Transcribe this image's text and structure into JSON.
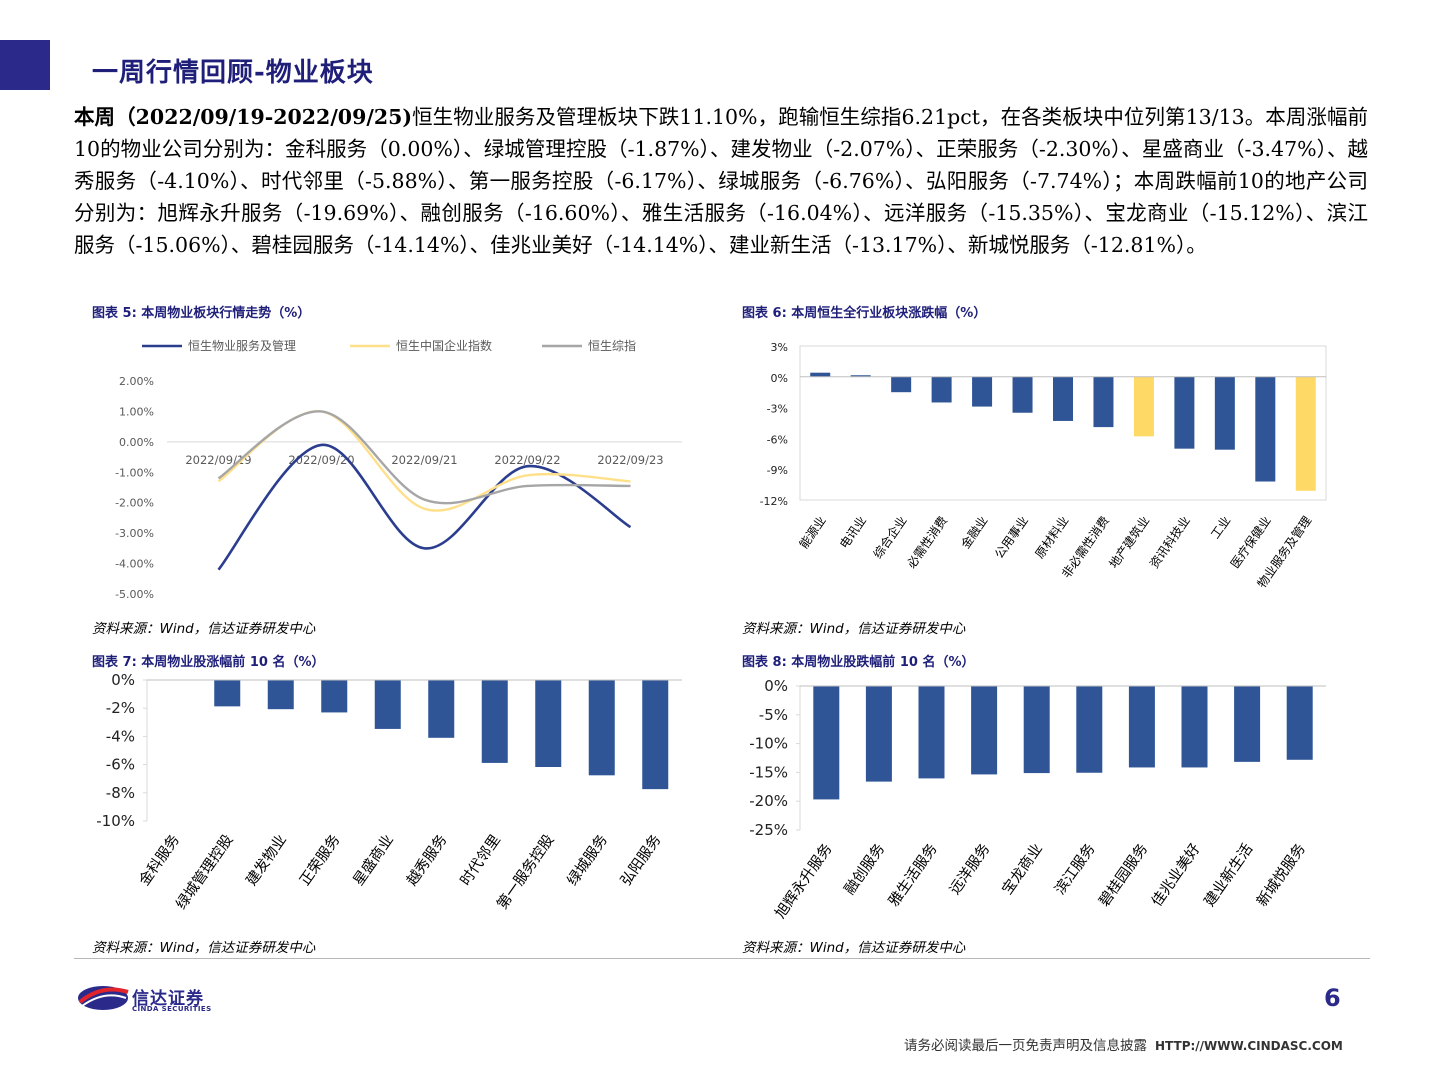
{
  "page": {
    "title": "一周行情回顾-物业板块",
    "summary_bold": "本周（2022/09/19-2022/09/25)",
    "summary_text": "恒生物业服务及管理板块下跌11.10%，跑输恒生综指6.21pct，在各类板块中位列第13/13。本周涨幅前10的物业公司分别为：金科服务（0.00%）、绿城管理控股（-1.87%）、建发物业（-2.07%）、正荣服务（-2.30%）、星盛商业（-3.47%）、越秀服务（-4.10%）、时代邻里（-5.88%）、第一服务控股（-6.17%）、绿城服务（-6.76%）、弘阳服务（-7.74%）；本周跌幅前10的地产公司分别为：旭辉永升服务（-19.69%）、融创服务（-16.60%）、雅生活服务（-16.04%）、远洋服务（-15.35%）、宝龙商业（-15.12%）、滨江服务（-15.06%）、碧桂园服务（-14.14%）、佳兆业美好（-14.14%）、建业新生活（-13.17%）、新城悦服务（-12.81%）。"
  },
  "figures": {
    "fig5_caption": "图表 5:  本周物业板块行情走势（%）",
    "fig6_caption": "图表 6:  本周恒生全行业板块涨跌幅（%）",
    "fig7_caption": "图表 7:  本周物业股涨幅前 10 名（%）",
    "fig8_caption": "图表 8:  本周物业股跌幅前 10 名（%）",
    "source": "资料来源：Wind，信达证券研发中心"
  },
  "footer": {
    "logo_cn": "信达证券",
    "logo_en": "CINDA SECURITIES",
    "page_number": "6",
    "disclaimer": "请务必阅读最后一页免责声明及信息披露",
    "url": "HTTP://WWW.CINDASC.COM"
  },
  "colors": {
    "navy": "#2b2a8a",
    "bar_blue": "#2f5597",
    "highlight_yellow": "#ffd966",
    "line_yellow": "#ffe08a",
    "line_gray": "#a6a6a6"
  },
  "chart_data": [
    {
      "id": "fig5",
      "type": "line",
      "x": [
        "2022/09/19",
        "2022/09/20",
        "2022/09/21",
        "2022/09/22",
        "2022/09/23"
      ],
      "ylim": [
        -5,
        2
      ],
      "yticks": [
        "2.00%",
        "1.00%",
        "0.00%",
        "-1.00%",
        "-2.00%",
        "-3.00%",
        "-4.00%",
        "-5.00%"
      ],
      "series": [
        {
          "name": "恒生物业服务及管理",
          "values": [
            -4.2,
            -0.1,
            -3.5,
            -0.8,
            -2.8
          ],
          "color": "#2b3d8f"
        },
        {
          "name": "恒生中国企业指数",
          "values": [
            -1.3,
            1.0,
            -2.2,
            -1.1,
            -1.3
          ],
          "color": "#ffe08a"
        },
        {
          "name": "恒生综指",
          "values": [
            -1.2,
            1.0,
            -1.9,
            -1.45,
            -1.45
          ],
          "color": "#a6a6a6"
        }
      ],
      "legend": "top"
    },
    {
      "id": "fig6",
      "type": "bar",
      "categories": [
        "能源业",
        "电讯业",
        "综合企业",
        "必需性消费",
        "金融业",
        "公用事业",
        "原材料业",
        "非必需性消费",
        "地产建筑业",
        "资讯科技业",
        "工业",
        "医疗保健业",
        "物业服务及管理"
      ],
      "values": [
        0.4,
        0.15,
        -1.5,
        -2.5,
        -2.9,
        -3.5,
        -4.3,
        -4.9,
        -5.8,
        -7.0,
        -7.1,
        -10.2,
        -11.1
      ],
      "highlight": [
        "地产建筑业",
        "物业服务及管理"
      ],
      "ylim": [
        -12,
        3
      ],
      "yticks": [
        "3%",
        "0%",
        "-3%",
        "-6%",
        "-9%",
        "-12%"
      ]
    },
    {
      "id": "fig7",
      "type": "bar",
      "categories": [
        "金科服务",
        "绿城管理控股",
        "建发物业",
        "正荣服务",
        "星盛商业",
        "越秀服务",
        "时代邻里",
        "第一服务控股",
        "绿城服务",
        "弘阳服务"
      ],
      "values": [
        0.0,
        -1.87,
        -2.07,
        -2.3,
        -3.47,
        -4.1,
        -5.88,
        -6.17,
        -6.76,
        -7.74
      ],
      "ylim": [
        -10,
        0
      ],
      "yticks": [
        "0%",
        "-2%",
        "-4%",
        "-6%",
        "-8%",
        "-10%"
      ]
    },
    {
      "id": "fig8",
      "type": "bar",
      "categories": [
        "旭辉永升服务",
        "融创服务",
        "雅生活服务",
        "远洋服务",
        "宝龙商业",
        "滨江服务",
        "碧桂园服务",
        "佳兆业美好",
        "建业新生活",
        "新城悦服务"
      ],
      "values": [
        -19.69,
        -16.6,
        -16.04,
        -15.35,
        -15.12,
        -15.06,
        -14.14,
        -14.14,
        -13.17,
        -12.81
      ],
      "ylim": [
        -25,
        0
      ],
      "yticks": [
        "0%",
        "-5%",
        "-10%",
        "-15%",
        "-20%",
        "-25%"
      ]
    }
  ]
}
